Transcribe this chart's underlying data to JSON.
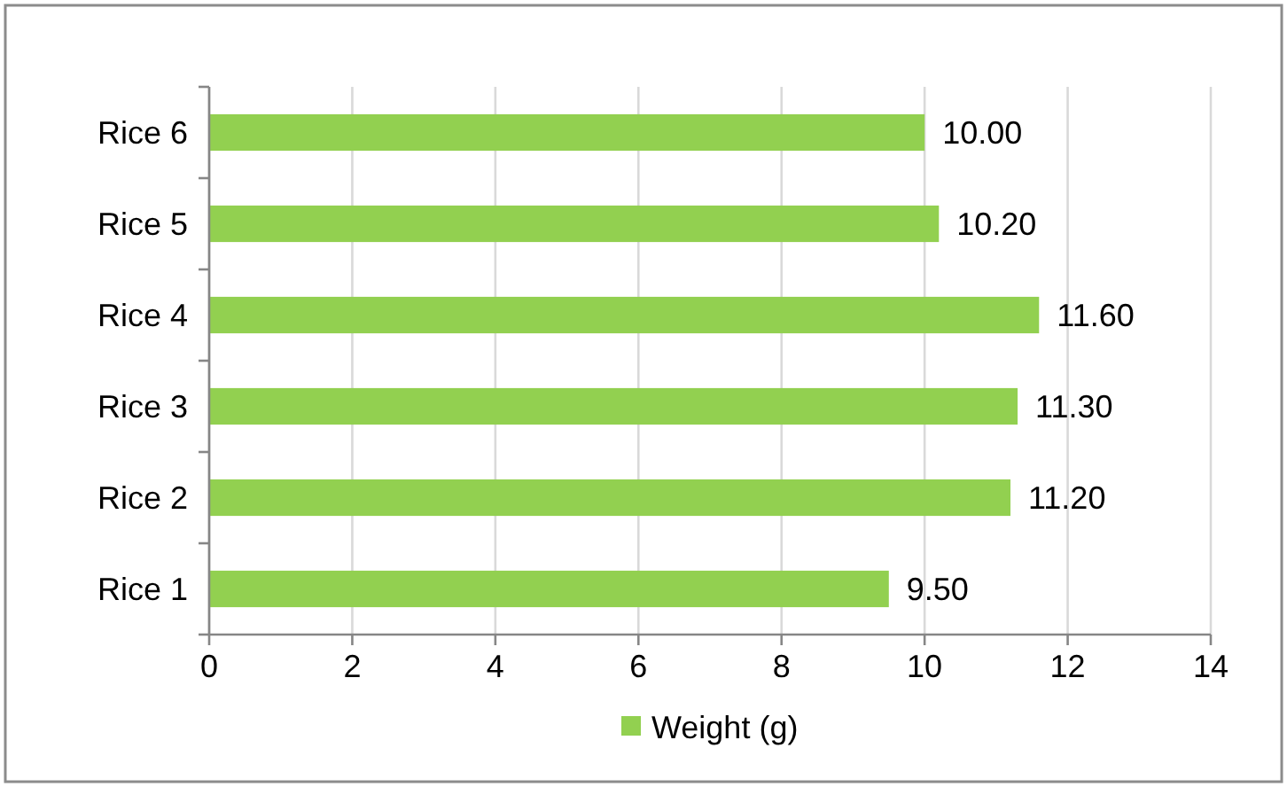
{
  "chart_data": {
    "type": "bar",
    "orientation": "horizontal",
    "categories": [
      "Rice 6",
      "Rice 5",
      "Rice 4",
      "Rice 3",
      "Rice 2",
      "Rice 1"
    ],
    "series": [
      {
        "name": "Weight (g)",
        "color": "#92d050",
        "values": [
          10.0,
          10.2,
          11.6,
          11.3,
          11.2,
          9.5
        ],
        "value_labels": [
          "10.00",
          "10.20",
          "11.60",
          "11.30",
          "11.20",
          "9.50"
        ]
      }
    ],
    "xlim": [
      0,
      14
    ],
    "xticks": [
      0,
      2,
      4,
      6,
      8,
      10,
      12,
      14
    ],
    "grid": "x",
    "legend": "bottom"
  }
}
